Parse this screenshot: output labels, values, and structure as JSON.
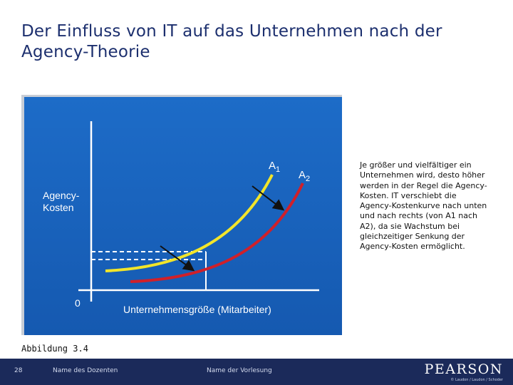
{
  "title": "Der Einfluss von IT auf das Unternehmen nach der Agency-Theorie",
  "figure": {
    "y_axis_label_line1": "Agency-",
    "y_axis_label_line2": "Kosten",
    "x_axis_label": "Unternehmensgröße (Mitarbeiter)",
    "origin_label": "0",
    "curve_a1": {
      "letter": "A",
      "index": "1",
      "color": "#f2e52a"
    },
    "curve_a2": {
      "letter": "A",
      "index": "2",
      "color": "#d0202a"
    },
    "background_color": "#1a66c2"
  },
  "description": "Je größer und vielfältiger ein Unternehmen wird, desto höher werden in der Regel die Agency-Kosten. IT verschiebt die Agency-Kostenkurve nach unten und nach rechts (von A1 nach A2), da sie Wachstum bei gleichzeitiger Senkung der Agency-Kosten ermöglicht.",
  "caption": "Abbildung 3.4",
  "footer": {
    "page_number": "28",
    "lecturer": "Name des Dozenten",
    "lecture": "Name der Vorlesung",
    "logo": "PEARSON",
    "logo_sub": "© Laudon / Laudon / Schoder"
  }
}
